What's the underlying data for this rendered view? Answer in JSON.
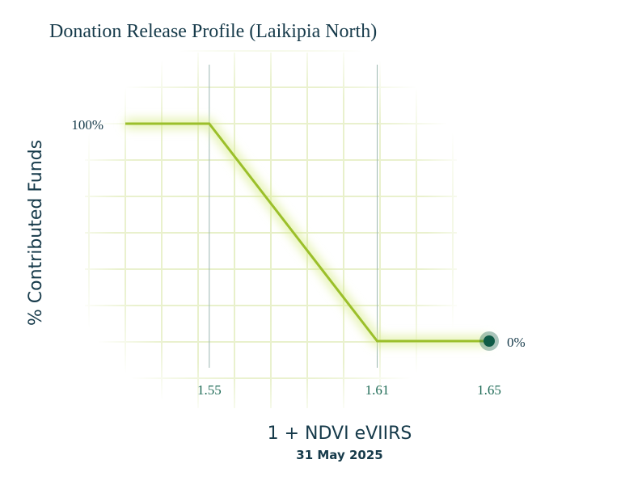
{
  "chart_data": {
    "type": "line",
    "title": "Donation Release Profile (Laikipia North)",
    "xlabel": "1 + NDVI eVIIRS",
    "subtitle": "31 May 2025",
    "ylabel": "% Contributed Funds",
    "series": [
      {
        "x": [
          1.52,
          1.55,
          1.61,
          1.65
        ],
        "y": [
          100,
          100,
          0,
          0
        ]
      }
    ],
    "current_point": {
      "x": 1.65,
      "y": 0,
      "label": "0%"
    },
    "y_top_label": "100%",
    "x_ticks": [
      {
        "value": 1.55,
        "label": "1.55"
      },
      {
        "value": 1.61,
        "label": "1.61"
      },
      {
        "value": 1.65,
        "label": "1.65"
      }
    ],
    "xlim": [
      1.52,
      1.65
    ],
    "ylim": [
      0,
      100
    ],
    "grid": true,
    "colors": {
      "line": "#9bbf2a",
      "glow": "#d8ec8a",
      "grid": "#e6efc6",
      "reference_line": "#9bb8b0",
      "point": "#0e5a46",
      "text": "#163a4a",
      "tick": "#1f6b57"
    }
  }
}
